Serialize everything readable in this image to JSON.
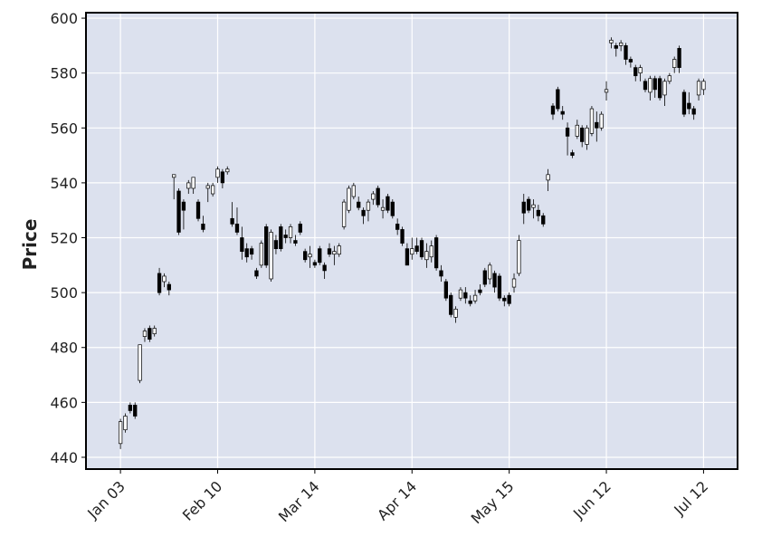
{
  "chart_data": {
    "type": "candlestick",
    "y_label": "Price",
    "xticks": [
      {
        "value": 0,
        "label": "Jan 03"
      },
      {
        "value": 20,
        "label": "Feb 10"
      },
      {
        "value": 40,
        "label": "Mar 14"
      },
      {
        "value": 60,
        "label": "Apr 14"
      },
      {
        "value": 80,
        "label": "May 15"
      },
      {
        "value": 100,
        "label": "Jun 12"
      },
      {
        "value": 120,
        "label": "Jul 12"
      }
    ],
    "xlim": [
      -7.1,
      127
    ],
    "ylim": [
      435.7,
      602
    ],
    "yticks": [
      440,
      460,
      480,
      500,
      520,
      540,
      560,
      580,
      600
    ],
    "grid": true,
    "up_color": "#ffffff",
    "down_color": "#000000",
    "edge_color": "#000000",
    "open": [
      445,
      450,
      459,
      459,
      468,
      484,
      487,
      485,
      507,
      504,
      503,
      542,
      537,
      533,
      538,
      538,
      533,
      525,
      538,
      536,
      542,
      544,
      544,
      527,
      525,
      520,
      516,
      516,
      508,
      510,
      524,
      505,
      519,
      524,
      521,
      520,
      519,
      525,
      515,
      513,
      511,
      516,
      510,
      516,
      514,
      514,
      524,
      530,
      535,
      533,
      530,
      530,
      534,
      538,
      530,
      535,
      533,
      525,
      523,
      516,
      514,
      517,
      519,
      512,
      513,
      520,
      508,
      504,
      499,
      491,
      498,
      500,
      497,
      497,
      501,
      508,
      505,
      507,
      506,
      498,
      499,
      502,
      507,
      533,
      534,
      531,
      530,
      528,
      541,
      568,
      574,
      566,
      560,
      551,
      557,
      560,
      554,
      558,
      562,
      560,
      573,
      591,
      590,
      590,
      590,
      585,
      582,
      580,
      577,
      573,
      578,
      578,
      572,
      577,
      582,
      589,
      573,
      569,
      567,
      572,
      574
    ],
    "high": [
      454,
      456,
      460,
      460,
      481,
      487,
      488,
      488,
      509,
      507,
      504,
      543,
      538,
      534,
      541,
      542,
      534,
      528,
      540,
      540,
      546,
      545,
      546,
      533,
      531,
      524,
      518,
      517,
      509,
      519,
      525,
      523,
      521,
      525,
      523,
      525,
      521,
      526,
      516,
      517,
      512,
      517,
      511,
      518,
      517,
      518,
      534,
      539,
      540,
      535,
      531,
      534,
      537,
      539,
      534,
      536,
      534,
      527,
      524,
      518,
      520,
      520,
      520,
      518,
      519,
      521,
      510,
      505,
      500,
      495,
      502,
      502,
      499,
      501,
      503,
      509,
      511,
      508,
      507,
      499,
      500,
      507,
      521,
      536,
      535,
      534,
      532,
      529,
      545,
      569,
      575,
      568,
      562,
      552,
      563,
      561,
      561,
      568,
      566,
      566,
      577,
      593,
      591,
      592,
      591,
      586,
      583,
      583,
      578,
      579,
      579,
      579,
      578,
      580,
      586,
      590,
      574,
      573,
      568,
      578,
      578
    ],
    "low": [
      443,
      449,
      456,
      454,
      467,
      482,
      482,
      484,
      499,
      502,
      499,
      534,
      521,
      523,
      536,
      536,
      526,
      522,
      533,
      535,
      540,
      538,
      543,
      524,
      521,
      512,
      511,
      512,
      505,
      509,
      509,
      504,
      514,
      515,
      518,
      518,
      517,
      521,
      511,
      509,
      509,
      510,
      505,
      513,
      510,
      513,
      523,
      529,
      534,
      530,
      525,
      526,
      532,
      531,
      527,
      529,
      527,
      521,
      517,
      510,
      512,
      514,
      512,
      509,
      511,
      508,
      504,
      497,
      491,
      489,
      497,
      496,
      495,
      496,
      499,
      502,
      503,
      500,
      497,
      495,
      495,
      500,
      506,
      525,
      529,
      527,
      526,
      524,
      537,
      563,
      566,
      563,
      550,
      549,
      556,
      553,
      552,
      557,
      555,
      559,
      570,
      589,
      586,
      588,
      583,
      582,
      577,
      577,
      573,
      570,
      571,
      570,
      568,
      576,
      580,
      580,
      564,
      565,
      563,
      570,
      572
    ],
    "close": [
      453,
      455,
      457,
      455,
      481,
      486,
      483,
      487,
      500,
      506,
      501,
      543,
      522,
      530,
      540,
      542,
      527,
      523,
      539,
      539,
      545,
      540,
      545,
      525,
      522,
      515,
      513,
      514,
      506,
      518,
      510,
      522,
      516,
      516,
      520,
      524,
      518,
      522,
      512,
      514,
      510,
      511,
      508,
      514,
      515,
      517,
      533,
      538,
      539,
      531,
      528,
      533,
      536,
      532,
      531,
      530,
      528,
      523,
      518,
      510,
      516,
      515,
      513,
      515,
      517,
      509,
      506,
      498,
      492,
      494,
      501,
      498,
      496,
      499,
      500,
      503,
      510,
      502,
      498,
      497,
      496,
      505,
      519,
      529,
      530,
      532,
      528,
      525,
      543,
      565,
      567,
      565,
      557,
      550,
      561,
      555,
      560,
      567,
      560,
      565,
      574,
      592,
      589,
      591,
      585,
      584,
      579,
      582,
      574,
      578,
      574,
      571,
      577,
      579,
      585,
      582,
      565,
      567,
      565,
      577,
      577
    ]
  }
}
